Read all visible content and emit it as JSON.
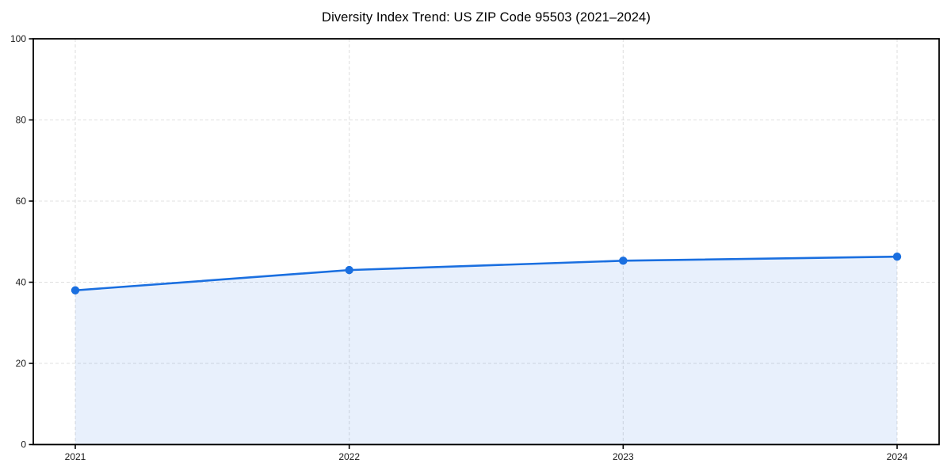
{
  "figure": {
    "background": "#ffffff"
  },
  "chart_data": {
    "type": "line",
    "title": "Diversity Index Trend: US ZIP Code 95503 (2021–2024)",
    "categories": [
      "2021",
      "2022",
      "2023",
      "2024"
    ],
    "series": [
      {
        "name": "Diversity Index",
        "values": [
          38,
          43,
          45.3,
          46.3
        ]
      }
    ],
    "xlabel": "",
    "ylabel": "",
    "ylim": [
      0,
      100
    ],
    "yticks": [
      0,
      20,
      40,
      60,
      80,
      100
    ],
    "grid": "dashed-both",
    "legend": "none",
    "area_fill": true,
    "marker": "circle",
    "colors": {
      "line": "#1a6fe0",
      "marker": "#1a6fe0",
      "fill": "#1a6fe0",
      "fill_opacity": "0.10",
      "grid": "#e0e0e0",
      "spine": "#000000",
      "tick_label": "#1a1a1a",
      "title": "#000000"
    }
  }
}
